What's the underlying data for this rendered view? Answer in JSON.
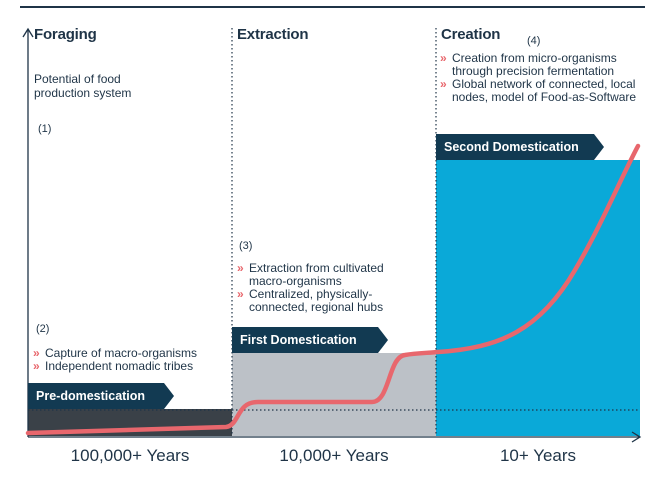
{
  "phases": [
    {
      "title": "Foraging",
      "marker": "(2)",
      "bullets": [
        "Capture of macro-organisms",
        "Independent nomadic tribes"
      ],
      "banner": "Pre-domestication",
      "period": "100,000+ Years"
    },
    {
      "title": "Extraction",
      "marker": "(3)",
      "bullets": [
        "Extraction from cultivated macro-organisms",
        "Centralized, physically-connected, regional hubs"
      ],
      "banner": "First Domestication",
      "period": "10,000+ Years"
    },
    {
      "title": "Creation",
      "marker": "(4)",
      "bullets": [
        "Creation from micro-organisms through precision fermentation",
        "Global network of connected, local nodes, model of Food-as-Software"
      ],
      "banner": "Second Domestication",
      "period": "10+ Years"
    }
  ],
  "y_axis": {
    "label": "Potential of food production system",
    "marker": "(1)"
  },
  "colors": {
    "top_rule": "#1f3447",
    "pre_band": "#3a4148",
    "first_band": "#bcc1c7",
    "second_band": "#0aa9d8",
    "curve": "#e8676d",
    "banner": "#123a52",
    "bullet": "#e8676d",
    "axis": "#1f3447"
  },
  "icons": {
    "y_axis_arrow": "arrow-up-icon",
    "x_axis_arrow": "arrow-right-icon"
  }
}
